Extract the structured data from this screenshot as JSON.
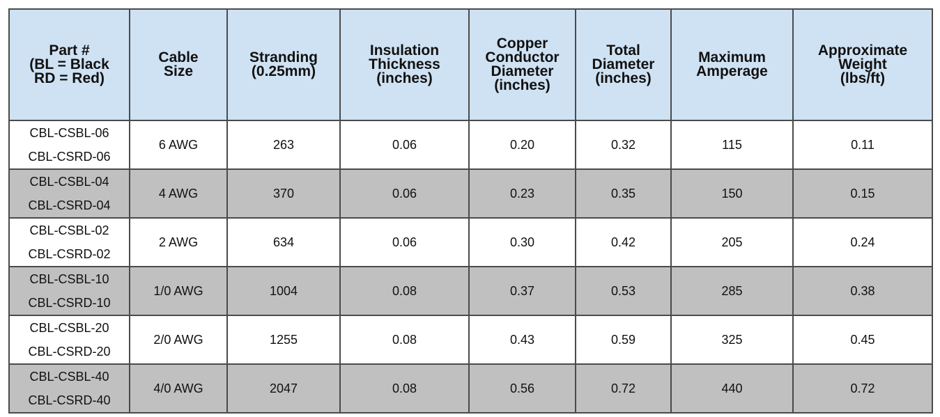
{
  "table": {
    "header": [
      [
        "Part #",
        "(BL = Black",
        "RD = Red)"
      ],
      [
        "Cable",
        "Size"
      ],
      [
        "Stranding",
        "(0.25mm)"
      ],
      [
        "Insulation",
        "Thickness",
        "(inches)"
      ],
      [
        "Copper",
        "Conductor",
        "Diameter",
        "(inches)"
      ],
      [
        "Total",
        "Diameter",
        "(inches)"
      ],
      [
        "Maximum",
        "Amperage"
      ],
      [
        "Approximate",
        "Weight",
        "(lbs/ft)"
      ]
    ],
    "rows": [
      [
        [
          "CBL-CSBL-06",
          "CBL-CSRD-06"
        ],
        "6 AWG",
        "263",
        "0.06",
        "0.20",
        "0.32",
        "115",
        "0.11"
      ],
      [
        [
          "CBL-CSBL-04",
          "CBL-CSRD-04"
        ],
        "4 AWG",
        "370",
        "0.06",
        "0.23",
        "0.35",
        "150",
        "0.15"
      ],
      [
        [
          "CBL-CSBL-02",
          "CBL-CSRD-02"
        ],
        "2 AWG",
        "634",
        "0.06",
        "0.30",
        "0.42",
        "205",
        "0.24"
      ],
      [
        [
          "CBL-CSBL-10",
          "CBL-CSRD-10"
        ],
        "1/0 AWG",
        "1004",
        "0.08",
        "0.37",
        "0.53",
        "285",
        "0.38"
      ],
      [
        [
          "CBL-CSBL-20",
          "CBL-CSRD-20"
        ],
        "2/0 AWG",
        "1255",
        "0.08",
        "0.43",
        "0.59",
        "325",
        "0.45"
      ],
      [
        [
          "CBL-CSBL-40",
          "CBL-CSRD-40"
        ],
        "4/0 AWG",
        "2047",
        "0.08",
        "0.56",
        "0.72",
        "440",
        "0.72"
      ]
    ]
  }
}
